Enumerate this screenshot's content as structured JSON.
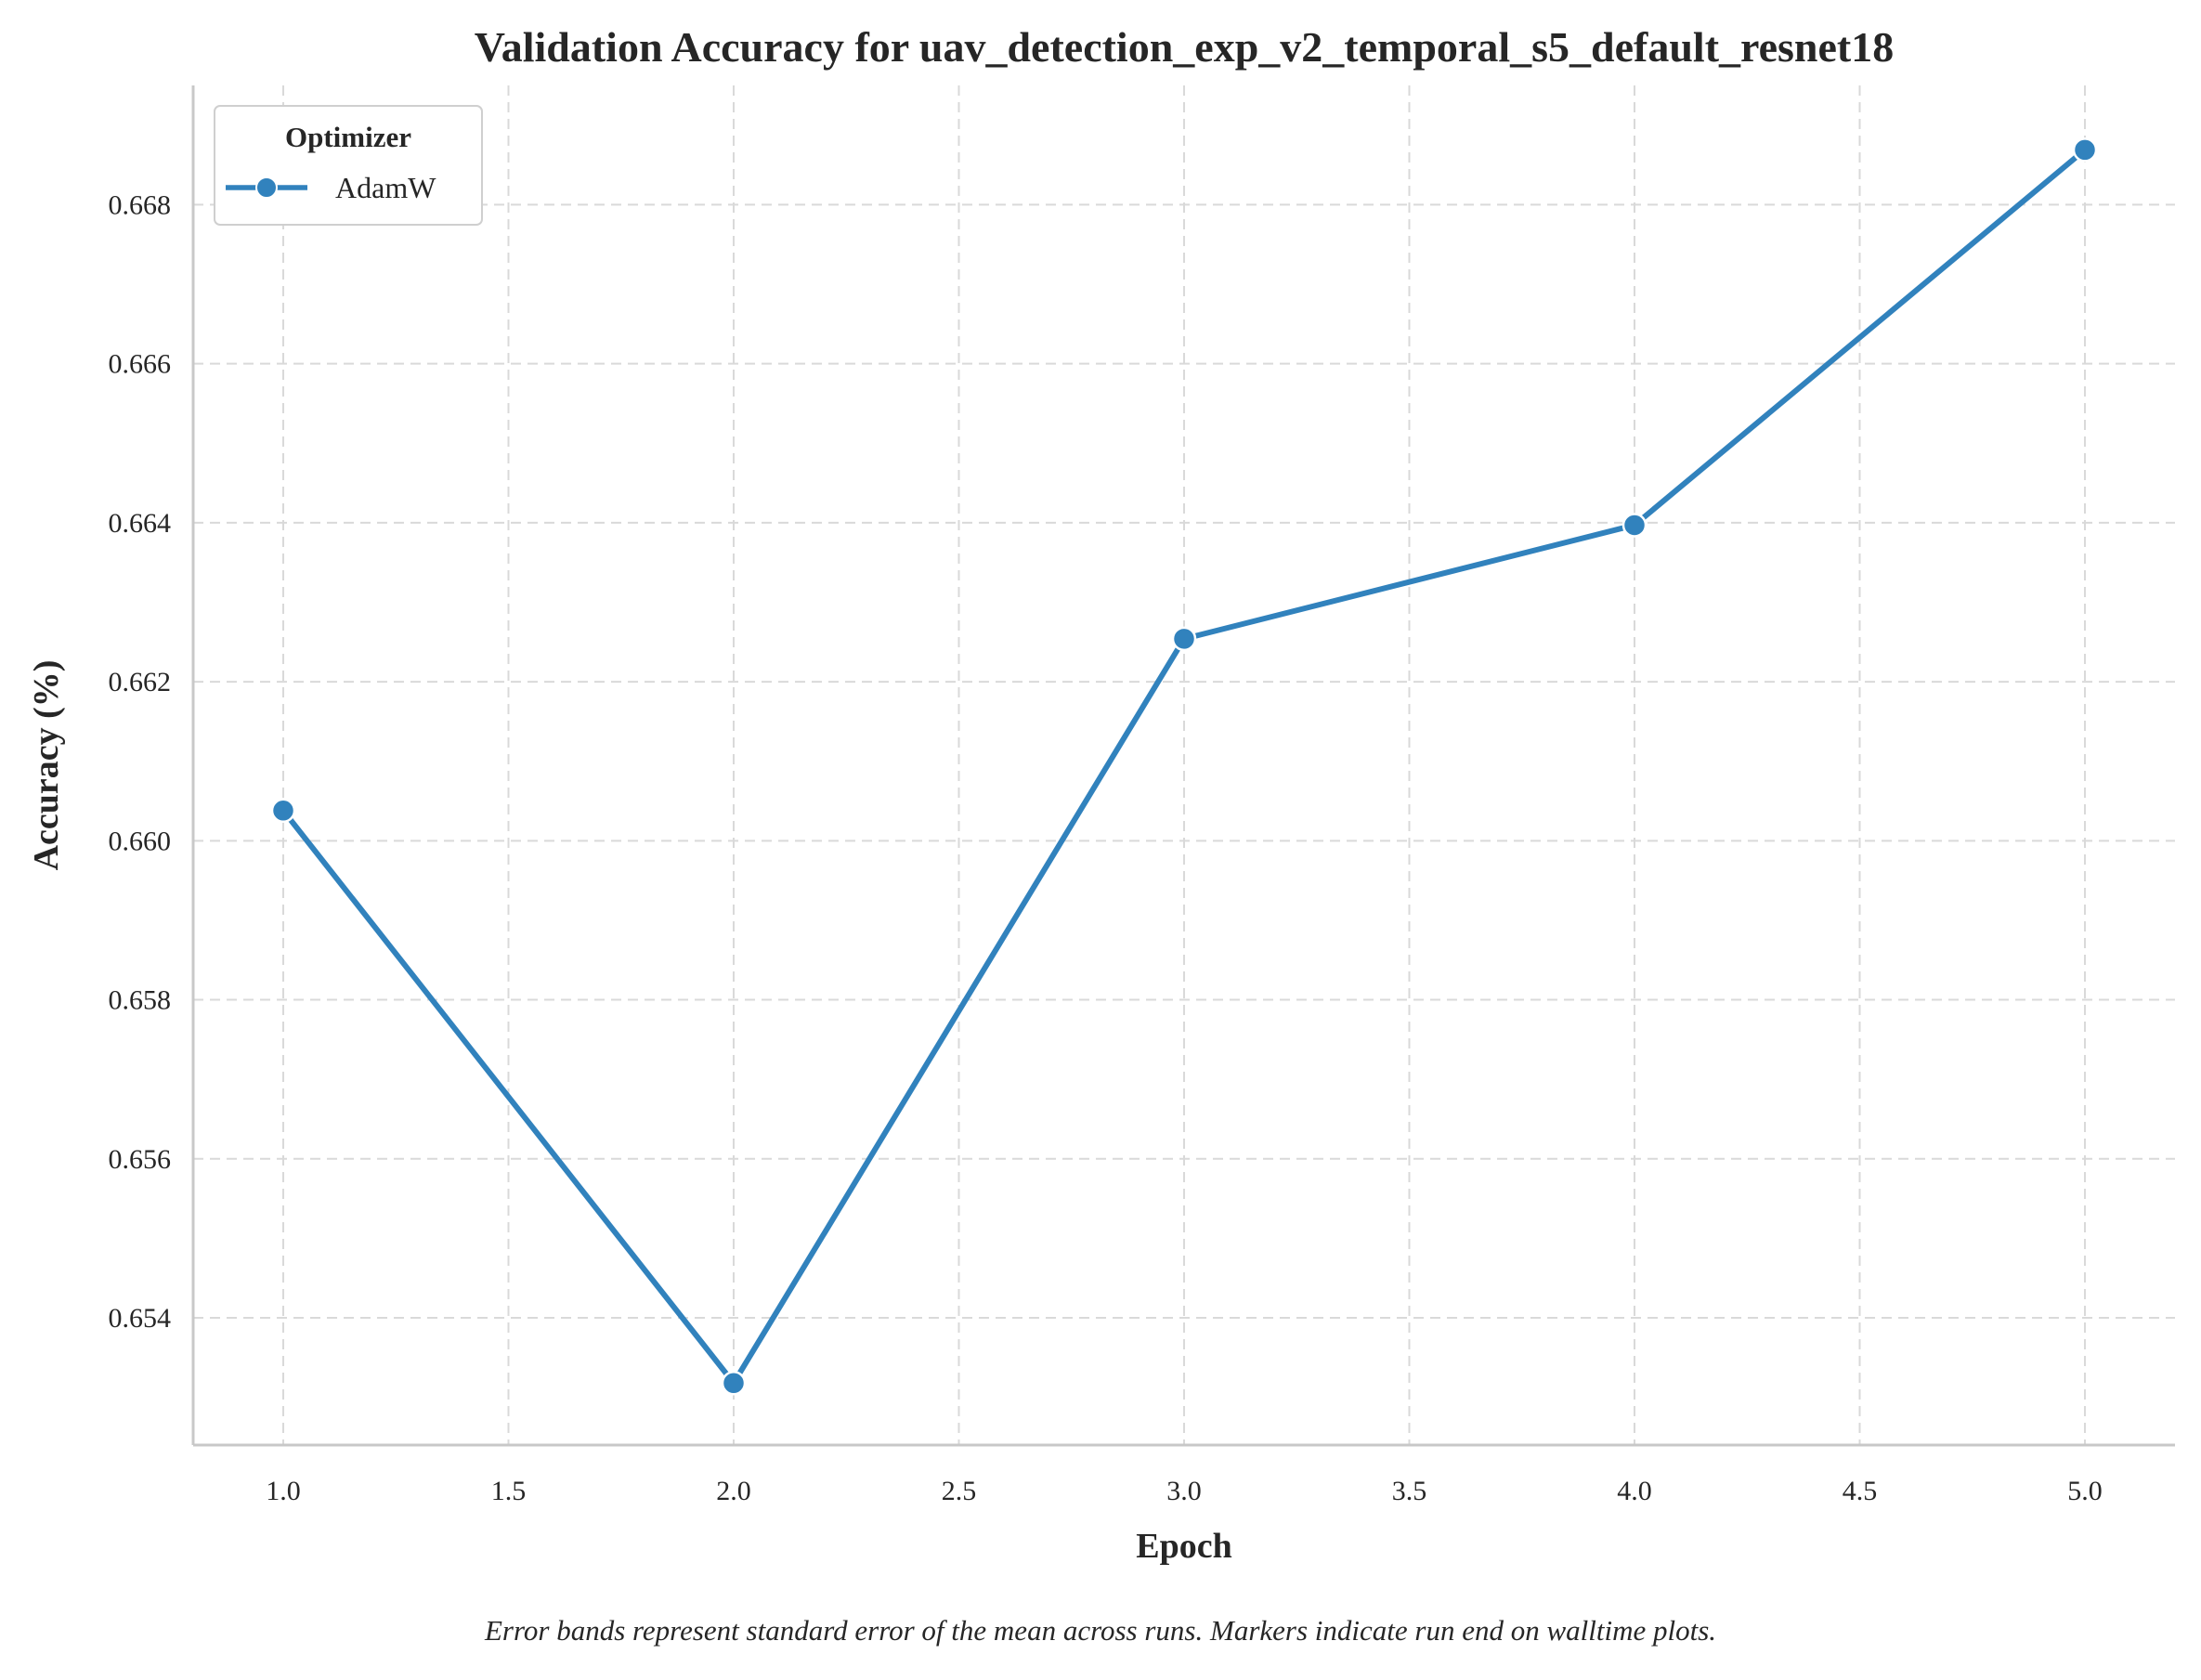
{
  "chart_data": {
    "type": "line",
    "title": "Validation Accuracy for uav_detection_exp_v2_temporal_s5_default_resnet18",
    "xlabel": "Epoch",
    "ylabel": "Accuracy (%)",
    "x": [
      1.0,
      2.0,
      3.0,
      4.0,
      5.0
    ],
    "series": [
      {
        "name": "AdamW",
        "values": [
          0.66038,
          0.65318,
          0.66254,
          0.66397,
          0.66869
        ],
        "color": "#3182bd"
      }
    ],
    "xlim": [
      0.8,
      5.2
    ],
    "ylim": [
      0.6524,
      0.6695
    ],
    "xticks": [
      1.0,
      1.5,
      2.0,
      2.5,
      3.0,
      3.5,
      4.0,
      4.5,
      5.0
    ],
    "xtick_labels": [
      "1.0",
      "1.5",
      "2.0",
      "2.5",
      "3.0",
      "3.5",
      "4.0",
      "4.5",
      "5.0"
    ],
    "yticks": [
      0.654,
      0.656,
      0.658,
      0.66,
      0.662,
      0.664,
      0.666,
      0.668
    ],
    "ytick_labels": [
      "0.654",
      "0.656",
      "0.658",
      "0.660",
      "0.662",
      "0.664",
      "0.666",
      "0.668"
    ],
    "grid": true,
    "legend": {
      "title": "Optimizer",
      "placement": "top-left"
    },
    "caption": "Error bands represent standard error of the mean across runs. Markers indicate run end on walltime plots."
  }
}
